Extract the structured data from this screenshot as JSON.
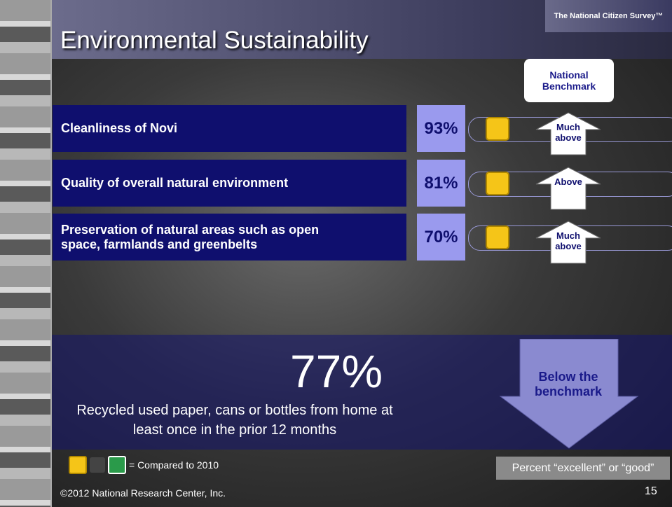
{
  "header": {
    "title": "Environmental Sustainability",
    "logo": "The National Citizen Survey™"
  },
  "benchmark_header": "National Benchmark",
  "rows": [
    {
      "label": "Cleanliness of Novi",
      "percent": "93%",
      "benchmark": "Much above"
    },
    {
      "label": "Quality of overall natural environment",
      "percent": "81%",
      "benchmark": "Above"
    },
    {
      "label": "Preservation of natural areas such as open space, farmlands and greenbelts",
      "percent": "70%",
      "benchmark": "Much above"
    }
  ],
  "highlight": {
    "percent": "77%",
    "description": "Recycled used paper, cans or bottles from home at least once in the prior 12 months",
    "benchmark": "Below the benchmark"
  },
  "legend": "= Compared to 2010",
  "note": "Percent “excellent” or “good”",
  "footer": {
    "copyright": "©2012 National Research Center, Inc.",
    "page": "15"
  }
}
